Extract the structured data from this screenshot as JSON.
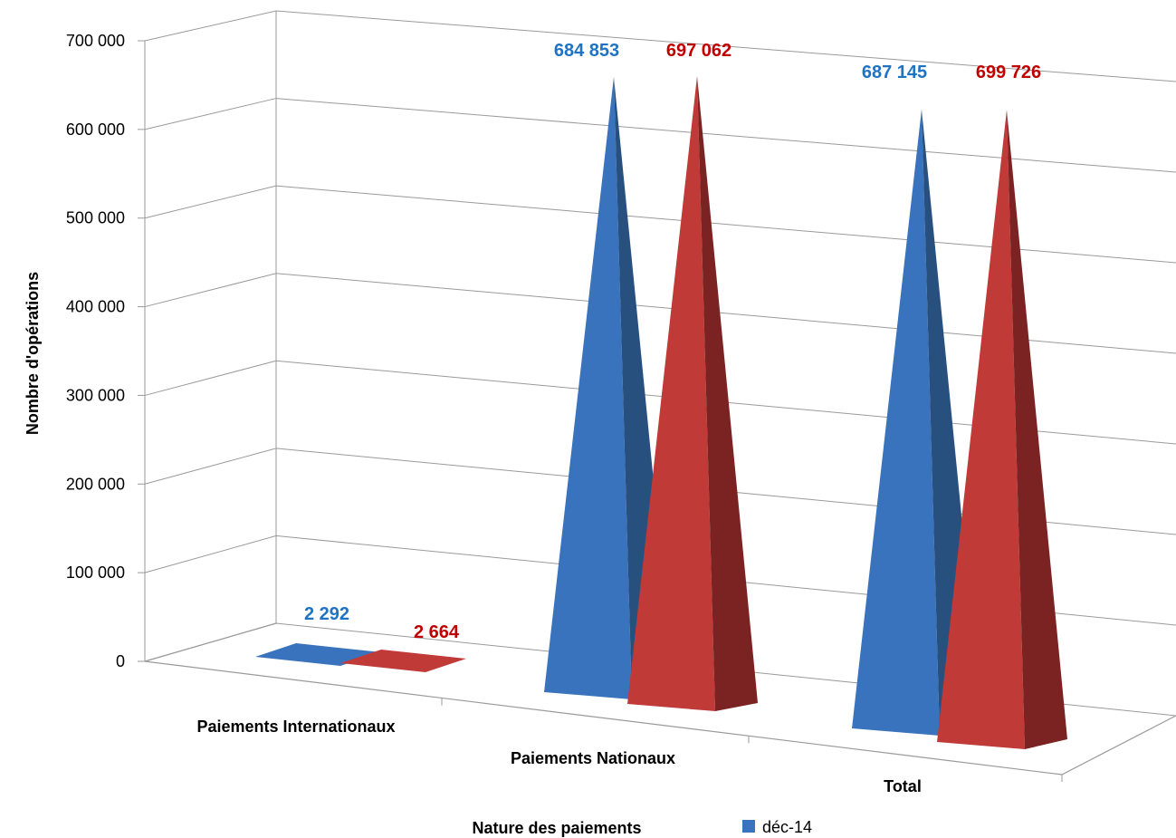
{
  "chart_data": {
    "type": "bar",
    "shape": "3d-pyramid",
    "categories": [
      "Paiements Internationaux",
      "Paiements Nationaux",
      "Total"
    ],
    "series": [
      {
        "name": "déc-14",
        "values": [
          2292,
          684853,
          687145
        ],
        "labels": [
          "2 292",
          "684 853",
          "687 145"
        ],
        "color": "#3a73bd"
      },
      {
        "values": [
          2664,
          697062,
          699726
        ],
        "labels": [
          "2 664",
          "697 062",
          "699 726"
        ],
        "color": "#c03a38"
      }
    ],
    "ylim": [
      0,
      700000
    ],
    "yticks": [
      "0",
      "100 000",
      "200 000",
      "300 000",
      "400 000",
      "500 000",
      "600 000",
      "700 000"
    ],
    "xlabel": "Nature des paiements",
    "ylabel": "Nombre d'opérations",
    "legend": {
      "position": "bottom",
      "entries": [
        "déc-14"
      ]
    },
    "grid": true
  },
  "colors": {
    "series1_light": "#3a73bd",
    "series1_dark": "#27507f",
    "series2_light": "#c03a38",
    "series2_dark": "#7a2322",
    "label1": "#1f73c2",
    "label2": "#c00000",
    "grid": "#9a9a9a"
  }
}
